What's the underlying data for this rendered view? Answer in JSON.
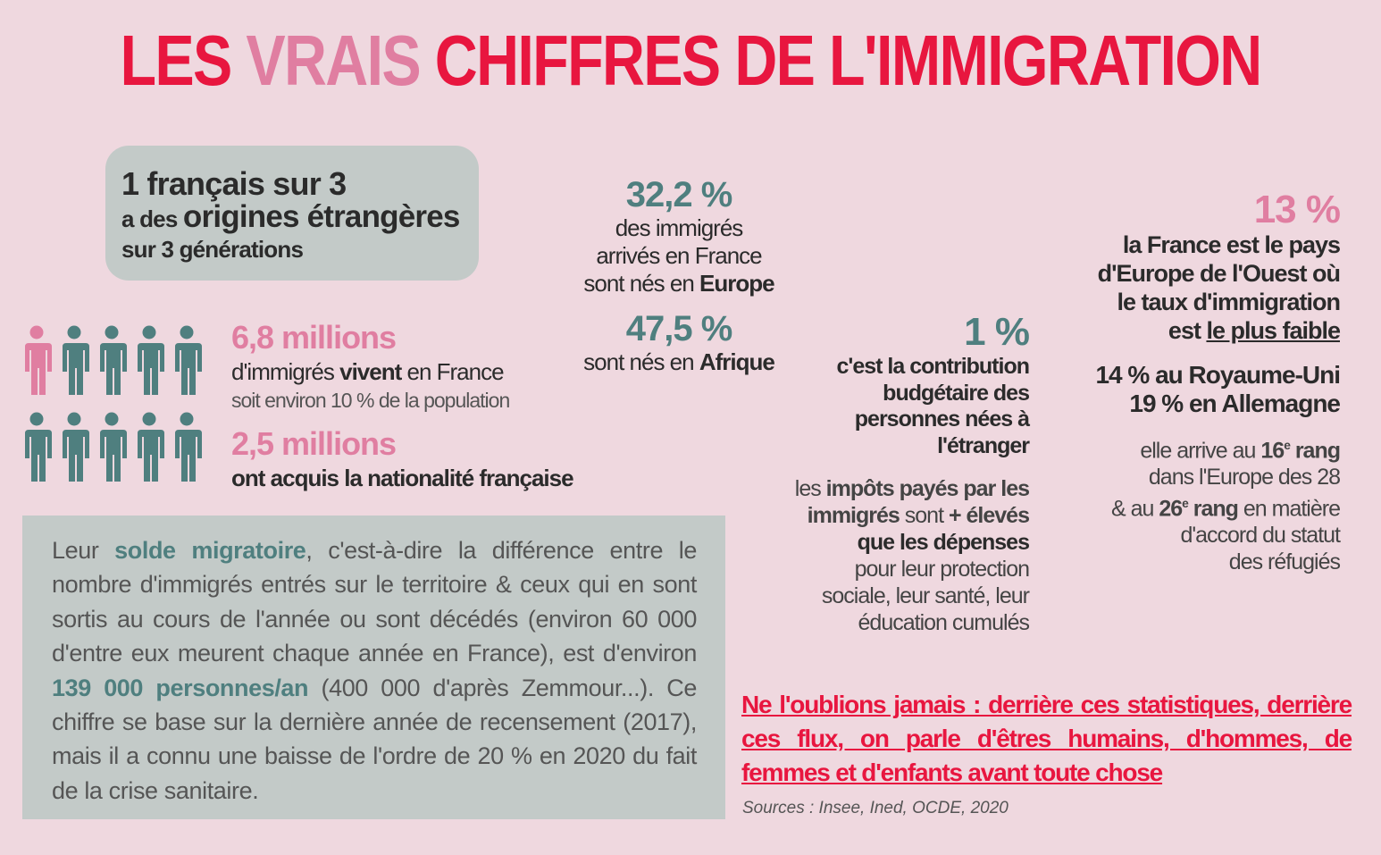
{
  "title": {
    "part1": "LES ",
    "part2": "VRAIS",
    "part3": " CHIFFRES DE L'IMMIGRATION"
  },
  "colors": {
    "background": "#efd8df",
    "red": "#e8163f",
    "pink": "#e07ea1",
    "teal": "#4f7f7f",
    "grey": "#c3cac8"
  },
  "card": {
    "line1": "1 français sur 3",
    "line2a": "a des ",
    "line2b": "origines étrangères",
    "line3": "sur 3 générations"
  },
  "people": {
    "total": 10,
    "highlighted": 1
  },
  "stat_immigrants": {
    "value": "6,8 millions",
    "a": "d'immigrés ",
    "b": "vivent",
    "c": " en France",
    "sub": "soit environ 10 % de la population"
  },
  "stat_nationality": {
    "value": "2,5 millions",
    "text": "ont acquis la nationalité française"
  },
  "stat_europe": {
    "value": "32,2 %",
    "l1": "des immigrés",
    "l2": "arrivés en France",
    "l3a": "sont nés en ",
    "l3b": "Europe"
  },
  "stat_africa": {
    "value": "47,5 %",
    "a": "sont nés en ",
    "b": "Afrique"
  },
  "stat_budget": {
    "value": "1 %",
    "lines": [
      "c'est la contribution",
      "budgétaire des",
      "personnes nées à",
      "l'étranger"
    ],
    "p1": "les ",
    "p2": "impôts payés par les",
    "p3": "immigrés",
    "p4": " sont ",
    "p5": "+ élevés",
    "p6": "que les dépenses",
    "p7": "pour leur protection",
    "p8": "sociale, leur santé, leur",
    "p9": "éducation cumulés"
  },
  "stat_rate": {
    "value": "13 %",
    "lines": [
      "la France est le pays",
      "d'Europe de l'Ouest où",
      "le taux d'immigration"
    ],
    "l4a": "est ",
    "l4b": "le plus faible",
    "uk": "14 % au Royaume-Uni",
    "de": "19 % en Allemagne",
    "r1a": "elle arrive au ",
    "r1b": "16",
    "r1sup": "e",
    "r1c": " rang",
    "r2": "dans l'Europe des 28",
    "r3a": "& au ",
    "r3b": "26",
    "r3sup": "e",
    "r3c": " rang",
    "r3d": " en matière",
    "r4": "d'accord du statut",
    "r5": "des réfugiés"
  },
  "paragraph": {
    "a": "Leur ",
    "b": "solde migratoire",
    "c": ", c'est-à-dire la différence entre le nombre d'immigrés entrés sur le territoire & ceux qui en sont sortis au cours de l'année ou sont décédés (environ 60 000 d'entre eux meurent chaque année en France), est d'environ ",
    "d": "139 000 personnes/an",
    "e": " (400 000 d'après Zemmour...). Ce chiffre se base sur la dernière année de recensement (2017), mais il a connu une baisse de l'ordre de 20 % en 2020 du fait de la crise sanitaire."
  },
  "warning": "Ne l'oublions jamais : derrière ces statistiques, derrière ces flux, on parle d'êtres humains, d'hommes, de femmes et d'enfants avant toute chose",
  "sources": "Sources : Insee, Ined, OCDE, 2020"
}
